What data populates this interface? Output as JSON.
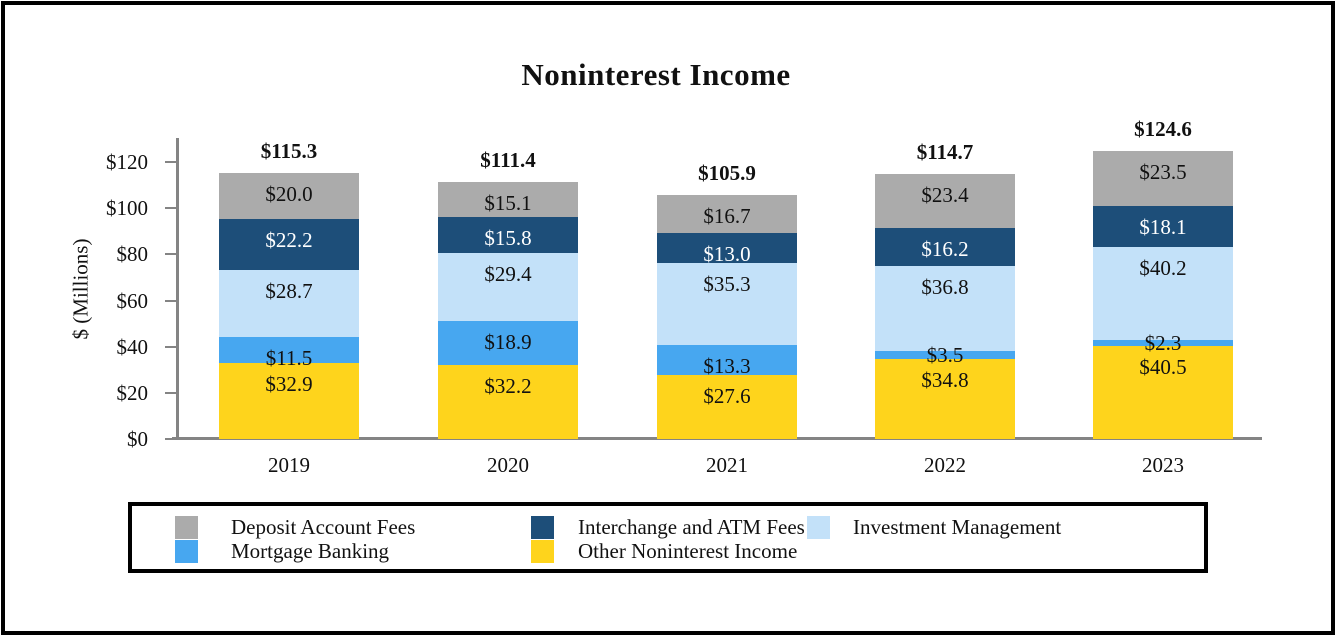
{
  "chart_data": {
    "type": "bar",
    "stacked": true,
    "title": "Noninterest Income",
    "ylabel": "$ (Millions)",
    "xlabel": "",
    "categories": [
      "2019",
      "2020",
      "2021",
      "2022",
      "2023"
    ],
    "series": [
      {
        "name": "Other Noninterest Income",
        "color": "#FED41C",
        "label_color": "#111111",
        "values": [
          32.9,
          32.2,
          27.6,
          34.8,
          40.5
        ]
      },
      {
        "name": "Mortgage Banking",
        "color": "#47A7F0",
        "label_color": "#111111",
        "values": [
          11.5,
          18.9,
          13.3,
          3.5,
          2.3
        ]
      },
      {
        "name": "Investment Management",
        "color": "#C3E1F9",
        "label_color": "#111111",
        "values": [
          28.7,
          29.4,
          35.3,
          36.8,
          40.2
        ]
      },
      {
        "name": "Interchange and ATM Fees",
        "color": "#1D4E79",
        "label_color": "#FFFFFF",
        "values": [
          22.2,
          15.8,
          13.0,
          16.2,
          18.1
        ]
      },
      {
        "name": "Deposit Account Fees",
        "color": "#ABABAB",
        "label_color": "#111111",
        "values": [
          20.0,
          15.1,
          16.7,
          23.4,
          23.5
        ]
      }
    ],
    "totals": [
      "$115.3",
      "$111.4",
      "$105.9",
      "$114.7",
      "$124.6"
    ],
    "value_prefix": "$",
    "y_ticks": [
      {
        "label": "$120",
        "value": 120
      },
      {
        "label": "$100",
        "value": 100
      },
      {
        "label": "$80",
        "value": 80
      },
      {
        "label": "$60",
        "value": 60
      },
      {
        "label": "$40",
        "value": 40
      },
      {
        "label": "$20",
        "value": 20
      },
      {
        "label": "$0",
        "value": 0
      }
    ],
    "ylim": [
      0,
      120
    ],
    "grid": false,
    "legend_position": "bottom"
  },
  "legend": {
    "items": [
      "Deposit Account Fees",
      "Interchange and ATM Fees",
      "Investment Management",
      "Mortgage Banking",
      "Other Noninterest Income"
    ]
  }
}
